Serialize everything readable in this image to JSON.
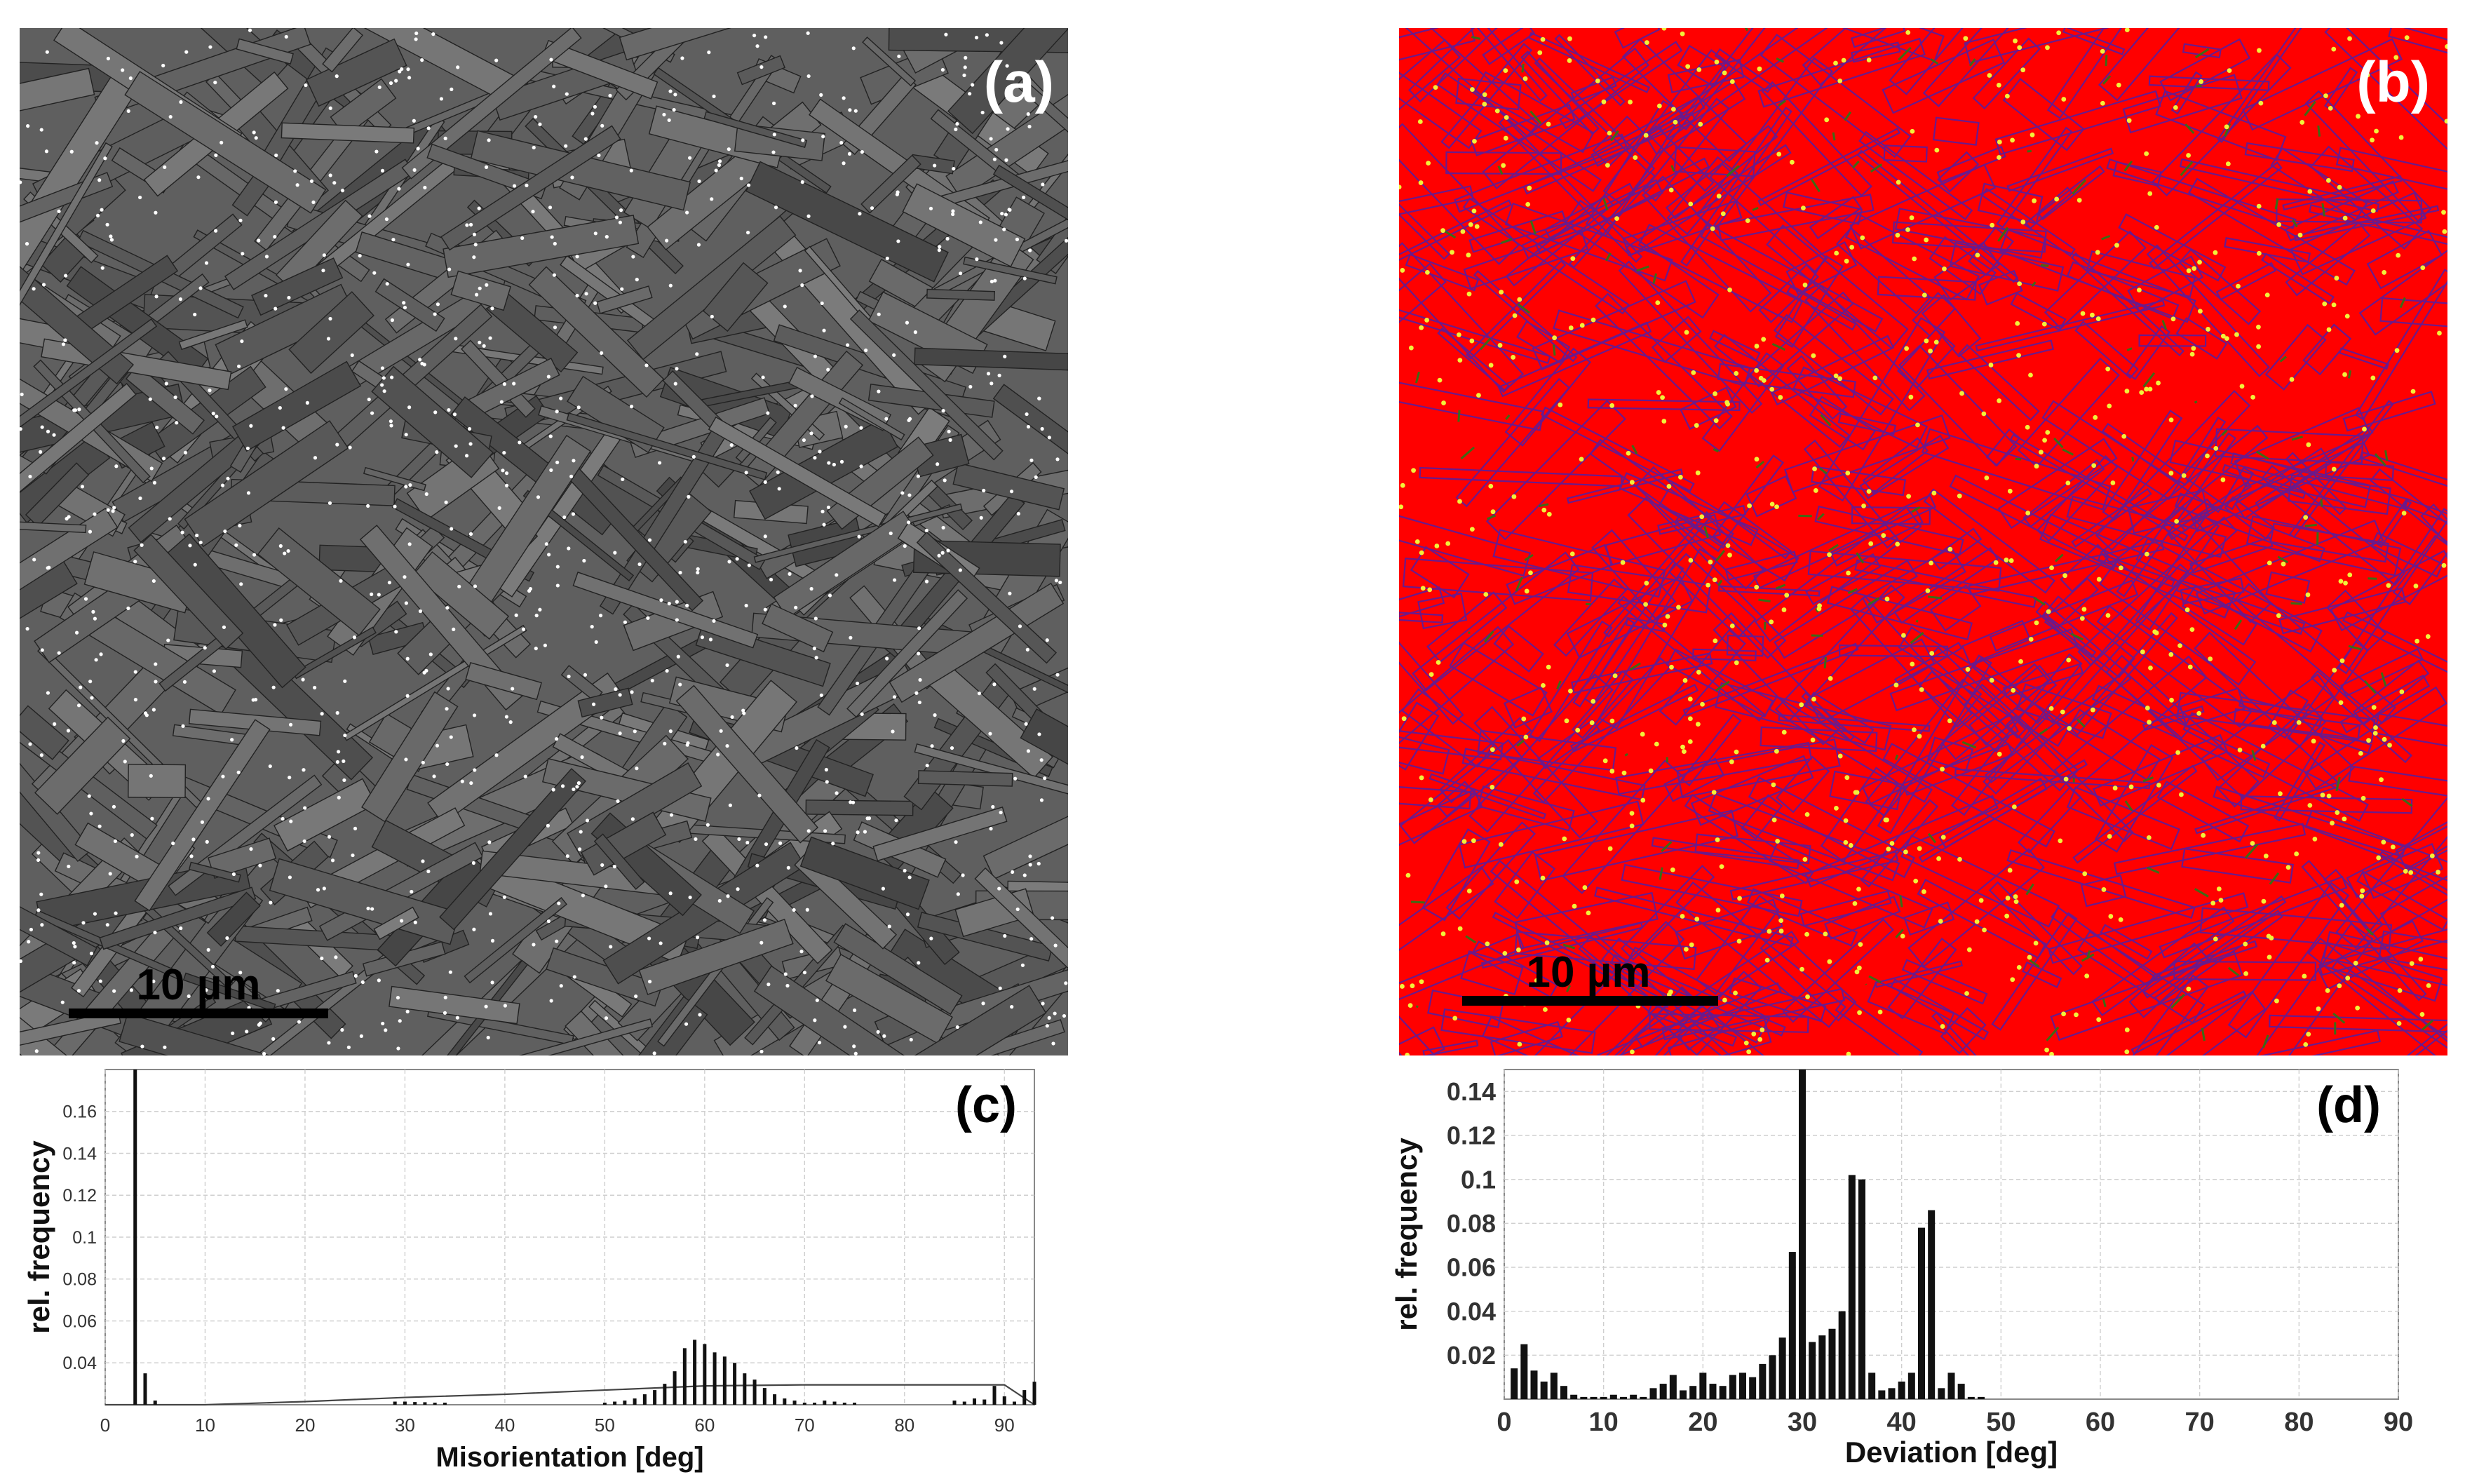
{
  "panels": {
    "a": {
      "label": "(a)",
      "scalebar": "10 µm"
    },
    "b": {
      "label": "(b)",
      "scalebar": "10 µm"
    }
  },
  "colors": {
    "micrograph_base": "#5f5f5f",
    "boundary_dark": "#222222",
    "ebsd_red": "#ff0000",
    "ebsd_purple": "#6a1a8c",
    "ebsd_green": "#3d6b16",
    "ebsd_yellow": "#f2f23a",
    "bar": "#111111",
    "grid": "#cfcfcf"
  },
  "chart_data": [
    {
      "type": "bar",
      "panel_label": "(c)",
      "xlabel": "Misorientation [deg]",
      "ylabel": "rel. frequency",
      "xlim": [
        0,
        93
      ],
      "ylim": [
        0.02,
        0.18
      ],
      "xticks": [
        0,
        10,
        20,
        30,
        40,
        50,
        60,
        70,
        80,
        90
      ],
      "yticks": [
        0.04,
        0.06,
        0.08,
        0.1,
        0.12,
        0.14,
        0.16
      ],
      "ytick_labels": [
        "0.04",
        "0.06",
        "0.08",
        "0.1",
        "0.12",
        "0.14",
        "0.16"
      ],
      "grid": true,
      "bars": {
        "x": [
          3,
          4,
          5,
          29,
          30,
          31,
          32,
          33,
          34,
          50,
          51,
          52,
          53,
          54,
          55,
          56,
          57,
          58,
          59,
          60,
          61,
          62,
          63,
          64,
          65,
          66,
          67,
          68,
          69,
          70,
          71,
          72,
          73,
          74,
          75,
          85,
          86,
          87,
          88,
          89,
          90,
          91,
          92,
          93
        ],
        "values": [
          0.18,
          0.035,
          0.022,
          0.0215,
          0.0215,
          0.0213,
          0.0212,
          0.021,
          0.021,
          0.021,
          0.0215,
          0.022,
          0.023,
          0.025,
          0.027,
          0.03,
          0.036,
          0.047,
          0.051,
          0.049,
          0.045,
          0.043,
          0.04,
          0.035,
          0.032,
          0.028,
          0.025,
          0.023,
          0.022,
          0.021,
          0.021,
          0.022,
          0.0215,
          0.021,
          0.021,
          0.022,
          0.0215,
          0.023,
          0.0225,
          0.029,
          0.024,
          0.0215,
          0.027,
          0.031
        ]
      },
      "reference_curve": {
        "x": [
          0,
          10,
          20,
          30,
          40,
          45,
          50,
          55,
          60,
          70,
          80,
          90,
          93
        ],
        "values": [
          0.02,
          0.02,
          0.0215,
          0.0235,
          0.025,
          0.026,
          0.027,
          0.028,
          0.029,
          0.0295,
          0.0295,
          0.0295,
          0.02
        ]
      }
    },
    {
      "type": "bar",
      "panel_label": "(d)",
      "xlabel": "Deviation [deg]",
      "ylabel": "rel. frequency",
      "xlim": [
        0,
        90
      ],
      "ylim": [
        0,
        0.15
      ],
      "xticks": [
        0,
        10,
        20,
        30,
        40,
        50,
        60,
        70,
        80,
        90
      ],
      "yticks": [
        0.02,
        0.04,
        0.06,
        0.08,
        0.1,
        0.12,
        0.14
      ],
      "ytick_labels": [
        "0.02",
        "0.04",
        "0.06",
        "0.08",
        "0.1",
        "0.12",
        "0.14"
      ],
      "grid": true,
      "bars": {
        "x": [
          1,
          2,
          3,
          4,
          5,
          6,
          7,
          8,
          9,
          10,
          11,
          12,
          13,
          14,
          15,
          16,
          17,
          18,
          19,
          20,
          21,
          22,
          23,
          24,
          25,
          26,
          27,
          28,
          29,
          30,
          31,
          32,
          33,
          34,
          35,
          36,
          37,
          38,
          39,
          40,
          41,
          42,
          43,
          44,
          45,
          46,
          47,
          48
        ],
        "values": [
          0.014,
          0.025,
          0.013,
          0.008,
          0.012,
          0.006,
          0.002,
          0.001,
          0.001,
          0.001,
          0.002,
          0.001,
          0.002,
          0.001,
          0.005,
          0.007,
          0.011,
          0.004,
          0.006,
          0.012,
          0.007,
          0.006,
          0.011,
          0.012,
          0.01,
          0.016,
          0.02,
          0.028,
          0.067,
          0.15,
          0.026,
          0.029,
          0.032,
          0.04,
          0.102,
          0.1,
          0.012,
          0.004,
          0.005,
          0.008,
          0.012,
          0.078,
          0.086,
          0.005,
          0.012,
          0.007,
          0.001,
          0.001
        ]
      }
    }
  ]
}
